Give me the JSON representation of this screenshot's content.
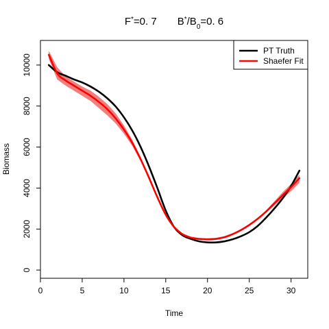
{
  "chart_data": {
    "type": "line",
    "title": {
      "parts": [
        {
          "text": "F",
          "sup": "*",
          "rest": "=0. 7"
        },
        {
          "text": "B",
          "sup": "*",
          "rest": "/B",
          "sub": "0",
          "rest2": "=0. 6"
        }
      ]
    },
    "xlabel": "Time",
    "ylabel": "Biomass",
    "xlim": [
      0,
      32
    ],
    "ylim": [
      -400,
      11200
    ],
    "xticks": [
      0,
      5,
      10,
      15,
      20,
      25,
      30
    ],
    "yticks": [
      0,
      2000,
      4000,
      6000,
      8000,
      10000
    ],
    "legend": {
      "position": "top-right",
      "entries": [
        {
          "label": "PT Truth",
          "color": "#000000"
        },
        {
          "label": "Shaefer Fit",
          "color": "#ff0000"
        }
      ]
    },
    "band_color": "#f08080",
    "series": [
      {
        "name": "PT Truth",
        "color": "#000000",
        "x": [
          1,
          2,
          3,
          4,
          5,
          6,
          7,
          8,
          9,
          10,
          11,
          12,
          13,
          14,
          15,
          16,
          17,
          18,
          19,
          20,
          21,
          22,
          23,
          24,
          25,
          26,
          27,
          28,
          29,
          30,
          31
        ],
        "y": [
          10000,
          9650,
          9480,
          9300,
          9150,
          8950,
          8700,
          8380,
          7980,
          7450,
          6800,
          6000,
          5050,
          4000,
          2900,
          2100,
          1700,
          1520,
          1400,
          1350,
          1350,
          1400,
          1500,
          1650,
          1850,
          2150,
          2550,
          3000,
          3500,
          4100,
          4850
        ]
      },
      {
        "name": "Shaefer Fit",
        "color": "#ff0000",
        "x": [
          1,
          2,
          3,
          4,
          5,
          6,
          7,
          8,
          9,
          10,
          11,
          12,
          13,
          14,
          15,
          16,
          17,
          18,
          19,
          20,
          21,
          22,
          23,
          24,
          25,
          26,
          27,
          28,
          29,
          30,
          31
        ],
        "y": [
          10500,
          9600,
          9250,
          9000,
          8750,
          8500,
          8200,
          7850,
          7400,
          6850,
          6200,
          5400,
          4500,
          3550,
          2700,
          2100,
          1750,
          1580,
          1520,
          1500,
          1520,
          1600,
          1750,
          1950,
          2200,
          2500,
          2850,
          3250,
          3650,
          4050,
          4480
        ],
        "band_lower": [
          10300,
          9300,
          9000,
          8750,
          8500,
          8250,
          7900,
          7550,
          7150,
          6650,
          6050,
          5300,
          4450,
          3500,
          2650,
          2050,
          1700,
          1530,
          1470,
          1450,
          1470,
          1550,
          1700,
          1900,
          2150,
          2450,
          2800,
          3150,
          3500,
          3850,
          4250
        ],
        "band_upper": [
          10700,
          9900,
          9450,
          9200,
          8950,
          8750,
          8450,
          8100,
          7650,
          7050,
          6350,
          5500,
          4600,
          3600,
          2750,
          2150,
          1800,
          1630,
          1570,
          1550,
          1570,
          1650,
          1800,
          2000,
          2250,
          2550,
          2900,
          3350,
          3800,
          4200,
          4650
        ]
      }
    ]
  }
}
